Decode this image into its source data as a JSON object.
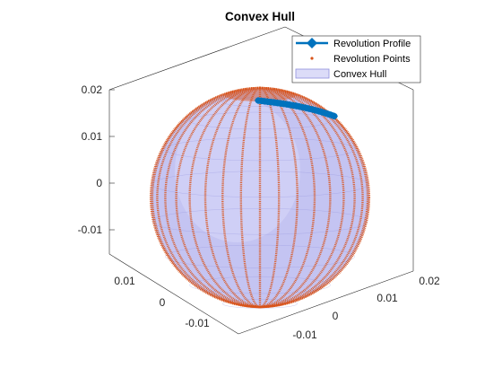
{
  "chart_data": {
    "type": "scatter",
    "title": "Convex Hull",
    "xlabel": "",
    "ylabel": "",
    "zlabel": "",
    "view": "3d",
    "grid": false,
    "box": true,
    "x_ticks": [
      -0.01,
      0,
      0.01,
      0.02
    ],
    "x_tick_labels": [
      "-0.01",
      "0",
      "0.01",
      "0.02"
    ],
    "y_ticks": [
      -0.01,
      0,
      0.01
    ],
    "y_tick_labels": [
      "-0.01",
      "0",
      "0.01"
    ],
    "z_ticks": [
      -0.01,
      0,
      0.01,
      0.02
    ],
    "z_tick_labels": [
      "-0.01",
      "0",
      "0.01",
      "0.02"
    ],
    "xlim": [
      -0.015,
      0.022
    ],
    "ylim": [
      -0.015,
      0.015
    ],
    "zlim": [
      -0.015,
      0.022
    ],
    "sphere": {
      "center": [
        0,
        0,
        0
      ],
      "radius": 0.015
    },
    "legend": {
      "location": "top-right",
      "entries": [
        {
          "label": "Revolution Profile",
          "kind": "line-marker",
          "color": "#0072BD"
        },
        {
          "label": "Revolution Points",
          "kind": "point",
          "color": "#D95319"
        },
        {
          "label": "Convex Hull",
          "kind": "patch",
          "color": "#B8B8F0"
        }
      ]
    },
    "series": [
      {
        "name": "Revolution Profile",
        "style": "line with diamond markers",
        "color": "#0072BD",
        "note": "quarter circle profile from top (0,0,0.015) to equator"
      },
      {
        "name": "Revolution Points",
        "style": "dots",
        "color": "#D95319",
        "meridians": 36
      },
      {
        "name": "Convex Hull",
        "style": "surface",
        "color": "#B8B8F0",
        "edge_color": "#9090DC"
      }
    ]
  }
}
